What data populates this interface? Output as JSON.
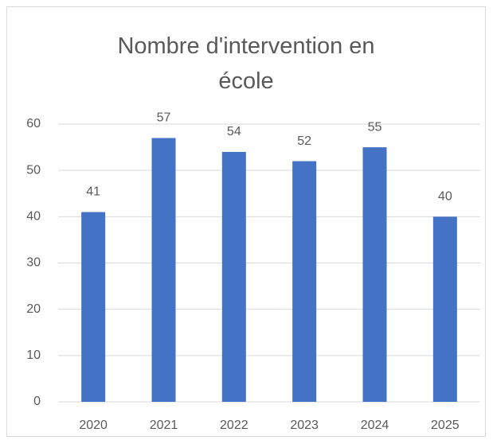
{
  "chart_data": {
    "type": "bar",
    "title": "Nombre d'intervention en école",
    "categories": [
      "2020",
      "2021",
      "2022",
      "2023",
      "2024",
      "2025"
    ],
    "values": [
      41,
      57,
      54,
      52,
      55,
      40
    ],
    "color": "#4472c4",
    "ylim": [
      0,
      60
    ],
    "yticks": [
      0,
      10,
      20,
      30,
      40,
      50,
      60
    ],
    "grid": true
  }
}
